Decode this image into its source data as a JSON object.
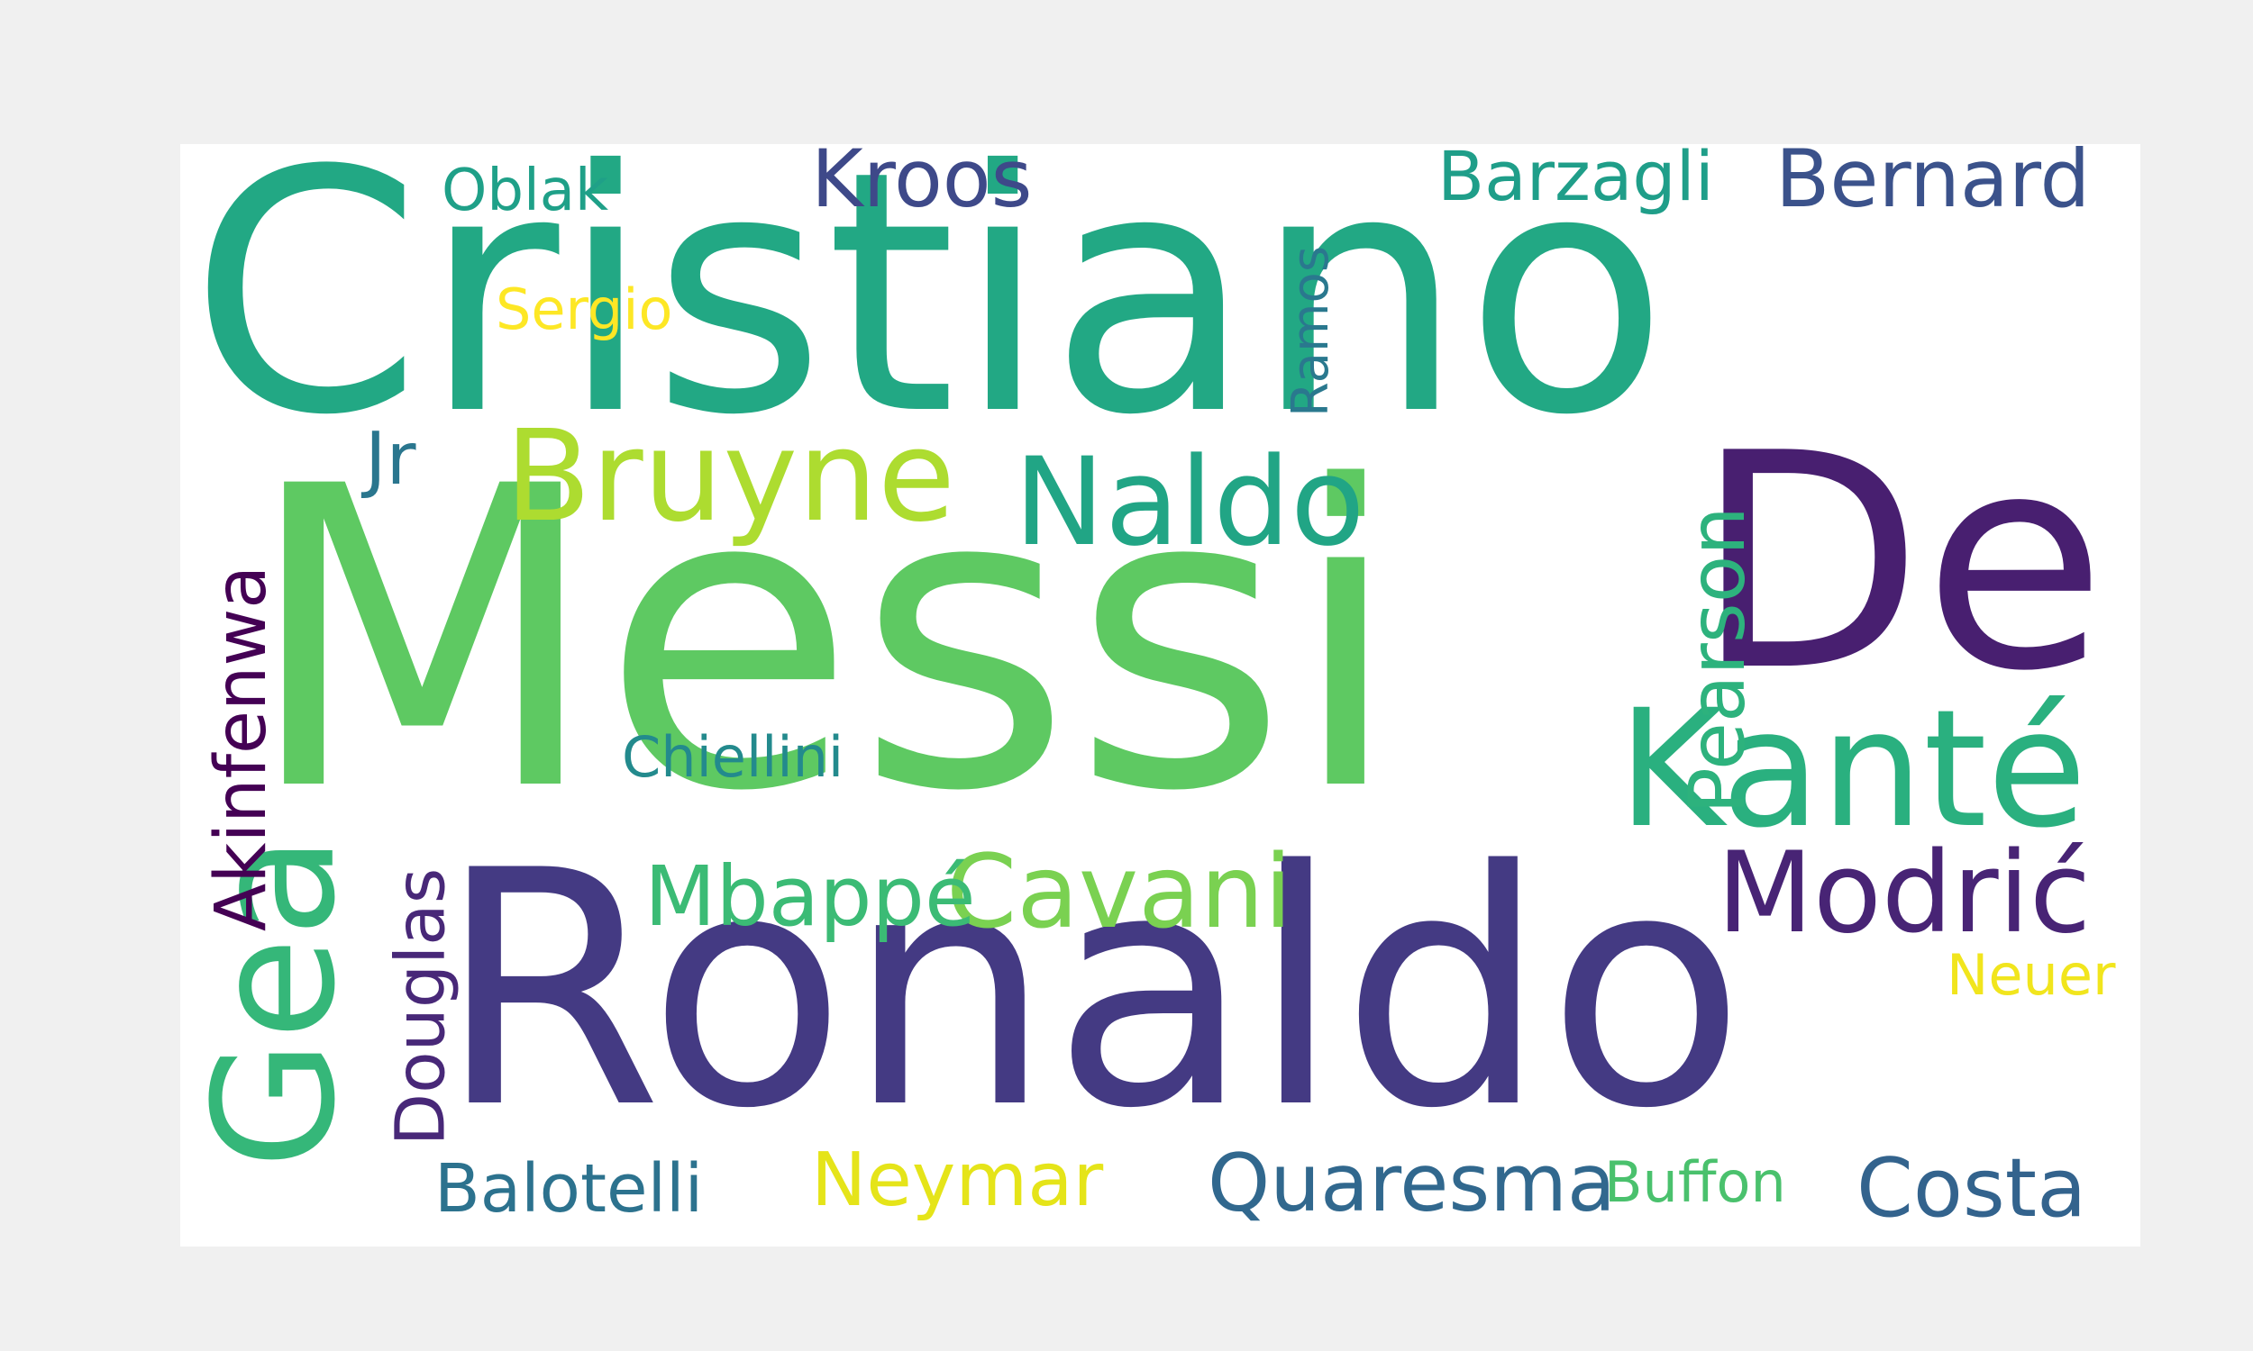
{
  "words": [
    {
      "key": "cristiano",
      "text": "Cristiano",
      "color": "#22a884"
    },
    {
      "key": "messi",
      "text": "Messi",
      "color": "#5ec962"
    },
    {
      "key": "ronaldo",
      "text": "Ronaldo",
      "color": "#443a83"
    },
    {
      "key": "de",
      "text": "De",
      "color": "#481f70"
    },
    {
      "key": "kante",
      "text": "Kanté",
      "color": "#2ab07f"
    },
    {
      "key": "gea",
      "text": "Gea",
      "color": "#35b779"
    },
    {
      "key": "modric",
      "text": "Modrić",
      "color": "#482475"
    },
    {
      "key": "bruyne",
      "text": "Bruyne",
      "color": "#addc30"
    },
    {
      "key": "naldo",
      "text": "Naldo",
      "color": "#21a585"
    },
    {
      "key": "cavani",
      "text": "Cavani",
      "color": "#7ad151"
    },
    {
      "key": "pearson",
      "text": "Pearson",
      "color": "#2db27d"
    },
    {
      "key": "akinfenwa",
      "text": "Akinfenwa",
      "color": "#440154"
    },
    {
      "key": "douglas",
      "text": "Douglas",
      "color": "#482878"
    },
    {
      "key": "mbappe",
      "text": "Mbappé",
      "color": "#3bbb75"
    },
    {
      "key": "quaresma",
      "text": "Quaresma",
      "color": "#31688e"
    },
    {
      "key": "costa",
      "text": "Costa",
      "color": "#33638d"
    },
    {
      "key": "kroos",
      "text": "Kroos",
      "color": "#3e4989"
    },
    {
      "key": "bernard",
      "text": "Bernard",
      "color": "#3b528b"
    },
    {
      "key": "barzagli",
      "text": "Barzagli",
      "color": "#1f9e89"
    },
    {
      "key": "neymar",
      "text": "Neymar",
      "color": "#e5e419"
    },
    {
      "key": "balotelli",
      "text": "Balotelli",
      "color": "#2c728e"
    },
    {
      "key": "buffon",
      "text": "Buffon",
      "color": "#4ac16d"
    },
    {
      "key": "chiellini",
      "text": "Chiellini",
      "color": "#238a8d"
    },
    {
      "key": "oblak",
      "text": "Oblak",
      "color": "#1fa088"
    },
    {
      "key": "sergio",
      "text": "Sergio",
      "color": "#fde725"
    },
    {
      "key": "ramos",
      "text": "Ramos",
      "color": "#2a788e"
    },
    {
      "key": "jr",
      "text": "Jr",
      "color": "#2a768e"
    },
    {
      "key": "neuer",
      "text": "Neuer",
      "color": "#f1e51d"
    }
  ]
}
